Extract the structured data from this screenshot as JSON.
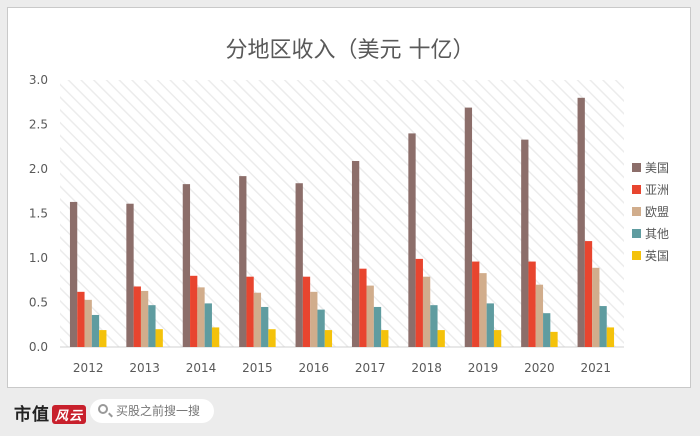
{
  "chart_data": {
    "type": "bar",
    "title": "分地区收入（美元 十亿）",
    "categories": [
      "2012",
      "2013",
      "2014",
      "2015",
      "2016",
      "2017",
      "2018",
      "2019",
      "2020",
      "2021"
    ],
    "ylim": [
      0,
      3.0
    ],
    "yticks": [
      "0.0",
      "0.5",
      "1.0",
      "1.5",
      "2.0",
      "2.5",
      "3.0"
    ],
    "grid": false,
    "legend_position": "right",
    "series": [
      {
        "name": "美国",
        "color": "#8c6e6a",
        "values": [
          1.63,
          1.61,
          1.83,
          1.92,
          1.84,
          2.09,
          2.4,
          2.69,
          2.33,
          2.8
        ]
      },
      {
        "name": "亚洲",
        "color": "#e8452f",
        "values": [
          0.62,
          0.68,
          0.8,
          0.79,
          0.79,
          0.88,
          0.99,
          0.96,
          0.96,
          1.19
        ]
      },
      {
        "name": "欧盟",
        "color": "#d1ad8c",
        "values": [
          0.53,
          0.63,
          0.67,
          0.61,
          0.62,
          0.69,
          0.79,
          0.83,
          0.7,
          0.89
        ]
      },
      {
        "name": "其他",
        "color": "#5f9ca0",
        "values": [
          0.36,
          0.47,
          0.49,
          0.45,
          0.42,
          0.45,
          0.47,
          0.49,
          0.38,
          0.46
        ]
      },
      {
        "name": "英国",
        "color": "#f4c20b",
        "values": [
          0.19,
          0.2,
          0.22,
          0.2,
          0.19,
          0.19,
          0.19,
          0.19,
          0.17,
          0.22
        ]
      }
    ]
  },
  "watermark_text": "市值风云",
  "footer": {
    "logo_text": "市值",
    "logo_badge": "风云",
    "search_placeholder": "买股之前搜一搜",
    "search_icon": "search-icon"
  }
}
